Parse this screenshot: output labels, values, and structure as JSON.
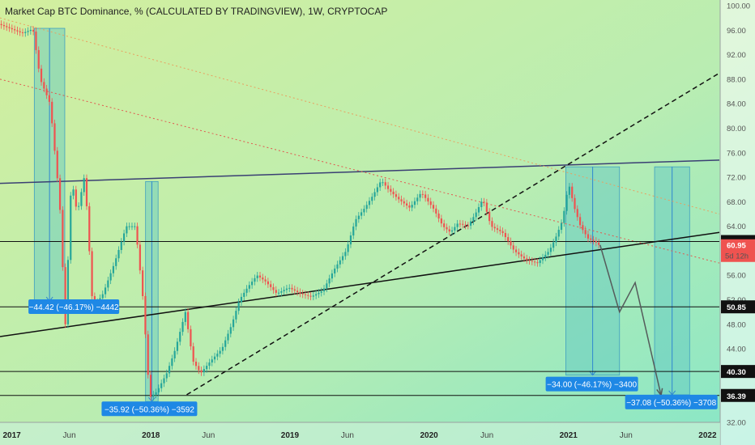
{
  "title": "Market Cap BTC Dominance, % (CALCULATED BY TRADINGVIEW), 1W, CRYPTOCAP",
  "chart_data": {
    "type": "candlestick",
    "title": "Market Cap BTC Dominance, % (CALCULATED BY TRADINGVIEW), 1W, CRYPTOCAP",
    "xlabel": "",
    "ylabel": "",
    "ylim": [
      32,
      100
    ],
    "y_ticks": [
      "100.00",
      "96.00",
      "92.00",
      "88.00",
      "84.00",
      "80.00",
      "76.00",
      "72.00",
      "68.00",
      "64.00",
      "60.00",
      "56.00",
      "52.00",
      "48.00",
      "44.00",
      "40.00",
      "36.00",
      "32.00"
    ],
    "x_ticks": [
      {
        "label": "2017",
        "date": "2017-01-01",
        "bold": true
      },
      {
        "label": "Jun",
        "date": "2017-06-01",
        "bold": false
      },
      {
        "label": "2018",
        "date": "2018-01-01",
        "bold": true
      },
      {
        "label": "Jun",
        "date": "2018-06-01",
        "bold": false
      },
      {
        "label": "2019",
        "date": "2019-01-01",
        "bold": true
      },
      {
        "label": "Jun",
        "date": "2019-06-01",
        "bold": false
      },
      {
        "label": "2020",
        "date": "2020-01-01",
        "bold": true
      },
      {
        "label": "Jun",
        "date": "2020-06-01",
        "bold": false
      },
      {
        "label": "2021",
        "date": "2021-01-01",
        "bold": true
      },
      {
        "label": "Jun",
        "date": "2021-06-01",
        "bold": false
      },
      {
        "label": "2022",
        "date": "2022-01-01",
        "bold": true
      }
    ],
    "price_points": [
      [
        "2016-12-01",
        97.0
      ],
      [
        "2017-02-01",
        95.5
      ],
      [
        "2017-03-01",
        96.2
      ],
      [
        "2017-03-20",
        88.0
      ],
      [
        "2017-04-15",
        84.0
      ],
      [
        "2017-05-10",
        68.0
      ],
      [
        "2017-05-25",
        48.0
      ],
      [
        "2017-06-10",
        72.0
      ],
      [
        "2017-06-25",
        66.0
      ],
      [
        "2017-07-15",
        72.5
      ],
      [
        "2017-08-05",
        50.5
      ],
      [
        "2017-09-01",
        53.0
      ],
      [
        "2017-10-01",
        58.0
      ],
      [
        "2017-11-01",
        64.0
      ],
      [
        "2017-11-25",
        64.0
      ],
      [
        "2017-12-15",
        52.0
      ],
      [
        "2018-01-01",
        36.0
      ],
      [
        "2018-01-20",
        37.0
      ],
      [
        "2018-02-15",
        40.0
      ],
      [
        "2018-03-10",
        44.0
      ],
      [
        "2018-04-05",
        50.0
      ],
      [
        "2018-04-25",
        42.0
      ],
      [
        "2018-05-15",
        40.0
      ],
      [
        "2018-06-10",
        42.0
      ],
      [
        "2018-07-10",
        44.0
      ],
      [
        "2018-08-05",
        48.0
      ],
      [
        "2018-08-25",
        52.0
      ],
      [
        "2018-09-15",
        54.0
      ],
      [
        "2018-10-10",
        56.0
      ],
      [
        "2018-11-01",
        55.0
      ],
      [
        "2018-12-01",
        53.0
      ],
      [
        "2019-01-01",
        54.0
      ],
      [
        "2019-02-01",
        53.0
      ],
      [
        "2019-03-01",
        52.5
      ],
      [
        "2019-04-01",
        53.5
      ],
      [
        "2019-05-01",
        57.0
      ],
      [
        "2019-06-01",
        60.0
      ],
      [
        "2019-06-25",
        65.0
      ],
      [
        "2019-07-20",
        67.0
      ],
      [
        "2019-08-10",
        69.0
      ],
      [
        "2019-09-01",
        71.5
      ],
      [
        "2019-09-20",
        70.0
      ],
      [
        "2019-10-15",
        68.5
      ],
      [
        "2019-11-15",
        67.0
      ],
      [
        "2019-12-15",
        69.5
      ],
      [
        "2020-01-15",
        67.0
      ],
      [
        "2020-02-10",
        64.0
      ],
      [
        "2020-03-01",
        63.0
      ],
      [
        "2020-03-20",
        64.5
      ],
      [
        "2020-04-15",
        64.0
      ],
      [
        "2020-05-05",
        66.0
      ],
      [
        "2020-05-25",
        68.5
      ],
      [
        "2020-06-15",
        64.0
      ],
      [
        "2020-07-15",
        63.0
      ],
      [
        "2020-08-15",
        60.0
      ],
      [
        "2020-09-15",
        58.5
      ],
      [
        "2020-10-15",
        58.0
      ],
      [
        "2020-11-15",
        60.0
      ],
      [
        "2020-12-01",
        62.0
      ],
      [
        "2020-12-20",
        65.0
      ],
      [
        "2021-01-05",
        71.0
      ],
      [
        "2021-01-20",
        67.0
      ],
      [
        "2021-02-05",
        64.0
      ],
      [
        "2021-02-25",
        62.0
      ],
      [
        "2021-03-15",
        61.5
      ],
      [
        "2021-03-25",
        60.95
      ]
    ],
    "last_price": "60.95",
    "countdown": "5d 12h",
    "horizontal_levels": [
      {
        "label": "61.51",
        "value": 61.51
      },
      {
        "label": "50.85",
        "value": 50.85
      },
      {
        "label": "40.30",
        "value": 40.3
      },
      {
        "label": "36.39",
        "value": 36.39
      }
    ],
    "trendlines": [
      {
        "name": "upper-resistance",
        "style": "solid",
        "color": "#3a3f73",
        "p1": [
          "2016-12-01",
          71.0
        ],
        "p2": [
          "2022-02-01",
          74.8
        ]
      },
      {
        "name": "lower-support",
        "style": "solid",
        "color": "#111111",
        "p1": [
          "2016-12-01",
          46.0
        ],
        "p2": [
          "2022-02-01",
          63.0
        ]
      },
      {
        "name": "rising-dashed",
        "style": "dashed",
        "color": "#111111",
        "p1": [
          "2018-04-05",
          36.5
        ],
        "p2": [
          "2022-02-01",
          89.0
        ]
      },
      {
        "name": "red-dotted-steep",
        "style": "dotted",
        "color": "#e05a50",
        "p1": [
          "2016-12-01",
          88.0
        ],
        "p2": [
          "2022-02-01",
          58.0
        ]
      },
      {
        "name": "orange-dotted-shallow",
        "style": "dotted",
        "color": "#e8a060",
        "p1": [
          "2016-12-01",
          98.0
        ],
        "p2": [
          "2022-02-01",
          66.0
        ]
      }
    ],
    "range_boxes": [
      {
        "label": "−44.42 (−46.17%) −4442",
        "from": "2017-03-01",
        "to": "2017-05-20",
        "top": 96.3,
        "bottom": 51.8
      },
      {
        "label": "−35.92 (−50.36%) −3592",
        "from": "2017-12-18",
        "to": "2018-01-20",
        "top": 71.3,
        "bottom": 35.4
      },
      {
        "label": "−34.00 (−46.17%) −3400",
        "from": "2020-12-25",
        "to": "2021-05-15",
        "top": 73.7,
        "bottom": 39.7
      },
      {
        "label": "−37.08 (−50.36%) −3708",
        "from": "2021-08-15",
        "to": "2021-11-15",
        "top": 73.7,
        "bottom": 36.5
      }
    ],
    "projection_path": [
      [
        "2021-03-25",
        60.95
      ],
      [
        "2021-05-15",
        50.0
      ],
      [
        "2021-06-25",
        54.8
      ],
      [
        "2021-09-01",
        36.4
      ]
    ]
  }
}
